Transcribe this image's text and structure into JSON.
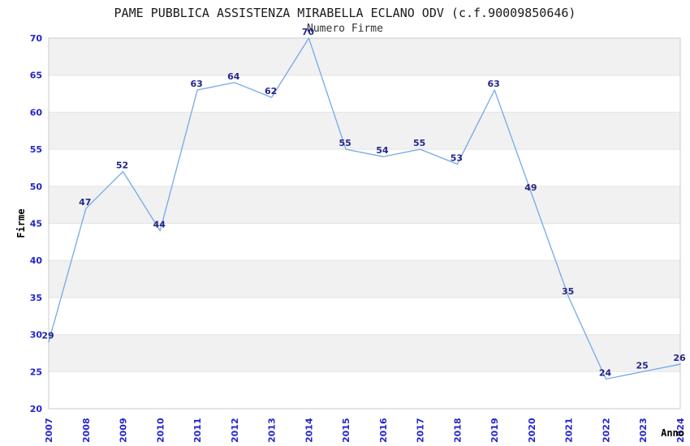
{
  "chart_data": {
    "type": "line",
    "title": "PAME PUBBLICA ASSISTENZA MIRABELLA ECLANO ODV (c.f.90009850646)",
    "subtitle": "Numero Firme",
    "xlabel": "Anno",
    "ylabel": "Firme",
    "categories": [
      "2007",
      "2008",
      "2009",
      "2010",
      "2011",
      "2012",
      "2013",
      "2014",
      "2015",
      "2016",
      "2017",
      "2018",
      "2019",
      "2020",
      "2021",
      "2022",
      "2023",
      "2024"
    ],
    "series": [
      {
        "name": "Numero Firme",
        "values": [
          29,
          47,
          52,
          44,
          63,
          64,
          62,
          70,
          55,
          54,
          55,
          53,
          63,
          49,
          35,
          24,
          25,
          26
        ]
      }
    ],
    "ylim": [
      20,
      70
    ],
    "yticks": [
      20,
      25,
      30,
      35,
      40,
      45,
      50,
      55,
      60,
      65,
      70
    ],
    "data_labels": true,
    "legend": "none",
    "grid": true,
    "colors": {
      "line": "#74a9e8",
      "data_label": "#26268c",
      "tick_label": "#2424cc",
      "axis_title": "#000000",
      "band": "#f1f1f1",
      "grid_line": "#e4e4e4",
      "plot_border": "#cccccc",
      "background": "#ffffff"
    }
  }
}
